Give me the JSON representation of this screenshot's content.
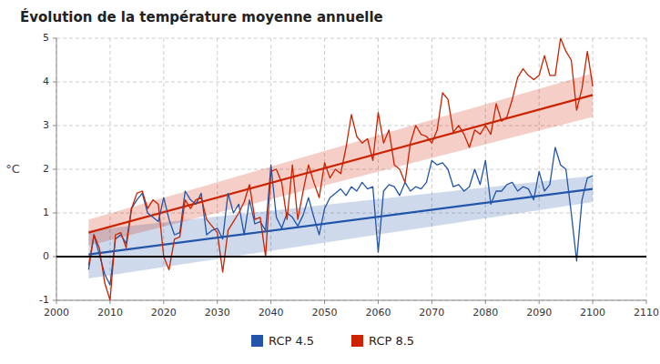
{
  "chart_data": {
    "type": "line",
    "title": "Évolution de la température moyenne annuelle",
    "y_label": "°C",
    "xlim": [
      2000,
      2110
    ],
    "ylim": [
      -1,
      5
    ],
    "xticks": [
      2000,
      2010,
      2020,
      2030,
      2040,
      2050,
      2060,
      2070,
      2080,
      2090,
      2100,
      2110
    ],
    "yticks": [
      -1,
      0,
      1,
      2,
      3,
      4,
      5
    ],
    "grid": true,
    "legend": "bottom",
    "reference_line": {
      "y": 0
    },
    "x": [
      2006,
      2007,
      2008,
      2009,
      2010,
      2011,
      2012,
      2013,
      2014,
      2015,
      2016,
      2017,
      2018,
      2019,
      2020,
      2021,
      2022,
      2023,
      2024,
      2025,
      2026,
      2027,
      2028,
      2029,
      2030,
      2031,
      2032,
      2033,
      2034,
      2035,
      2036,
      2037,
      2038,
      2039,
      2040,
      2041,
      2042,
      2043,
      2044,
      2045,
      2046,
      2047,
      2048,
      2049,
      2050,
      2051,
      2052,
      2053,
      2054,
      2055,
      2056,
      2057,
      2058,
      2059,
      2060,
      2061,
      2062,
      2063,
      2064,
      2065,
      2066,
      2067,
      2068,
      2069,
      2070,
      2071,
      2072,
      2073,
      2074,
      2075,
      2076,
      2077,
      2078,
      2079,
      2080,
      2081,
      2082,
      2083,
      2084,
      2085,
      2086,
      2087,
      2088,
      2089,
      2090,
      2091,
      2092,
      2093,
      2094,
      2095,
      2096,
      2097,
      2098,
      2099,
      2100
    ],
    "series": [
      {
        "name": "RCP 4.5",
        "color": "#2255aa",
        "values": [
          -0.3,
          0.5,
          0.05,
          -0.4,
          -0.65,
          0.4,
          0.5,
          0.3,
          1.1,
          1.3,
          1.45,
          1.0,
          0.9,
          0.8,
          1.35,
          0.85,
          0.5,
          0.55,
          1.5,
          1.3,
          1.2,
          1.45,
          0.5,
          0.6,
          0.65,
          0.4,
          1.45,
          1.0,
          1.2,
          0.5,
          1.3,
          0.75,
          0.8,
          0.6,
          2.1,
          0.9,
          0.65,
          1.0,
          0.9,
          0.7,
          0.95,
          1.35,
          0.9,
          0.5,
          1.1,
          1.35,
          1.45,
          1.55,
          1.4,
          1.6,
          1.5,
          1.7,
          1.55,
          1.6,
          0.1,
          1.5,
          1.65,
          1.6,
          1.4,
          1.7,
          1.5,
          1.6,
          1.55,
          1.7,
          2.2,
          2.1,
          2.15,
          2.0,
          1.6,
          1.65,
          1.5,
          1.6,
          2.0,
          1.65,
          2.2,
          1.2,
          1.5,
          1.5,
          1.65,
          1.7,
          1.5,
          1.6,
          1.55,
          1.3,
          1.95,
          1.5,
          1.65,
          2.5,
          2.1,
          2.0,
          1.0,
          -0.1,
          1.3,
          1.8,
          1.85
        ],
        "trend": {
          "x": [
            2006,
            2100
          ],
          "values": [
            0.05,
            1.55
          ],
          "upper": [
            0.6,
            1.85
          ],
          "lower": [
            -0.5,
            1.25
          ]
        }
      },
      {
        "name": "RCP 8.5",
        "color": "#cc2200",
        "values": [
          -0.2,
          0.5,
          0.2,
          -0.6,
          -1.0,
          0.5,
          0.55,
          0.2,
          1.1,
          1.45,
          1.5,
          1.1,
          1.3,
          1.2,
          0.0,
          -0.3,
          0.4,
          0.45,
          1.3,
          1.1,
          1.3,
          1.35,
          0.85,
          0.7,
          0.55,
          -0.35,
          0.6,
          0.8,
          1.0,
          1.25,
          1.65,
          0.85,
          0.9,
          0.0,
          1.95,
          2.0,
          1.7,
          0.85,
          2.1,
          0.85,
          1.5,
          2.1,
          1.7,
          1.35,
          2.15,
          1.8,
          2.0,
          1.9,
          2.5,
          3.25,
          2.75,
          2.6,
          2.7,
          2.2,
          3.3,
          2.6,
          2.9,
          2.1,
          2.0,
          1.7,
          2.6,
          3.0,
          2.8,
          2.75,
          2.6,
          2.9,
          3.75,
          3.6,
          2.85,
          3.0,
          2.8,
          2.5,
          2.9,
          2.8,
          3.0,
          2.8,
          3.5,
          3.1,
          3.2,
          3.6,
          4.1,
          4.3,
          4.15,
          4.05,
          4.15,
          4.6,
          4.15,
          4.15,
          5.0,
          4.7,
          4.5,
          3.35,
          3.85,
          4.7,
          3.9
        ],
        "trend": {
          "x": [
            2006,
            2100
          ],
          "values": [
            0.55,
            3.7
          ],
          "upper": [
            0.85,
            4.2
          ],
          "lower": [
            0.25,
            3.2
          ]
        }
      }
    ]
  }
}
